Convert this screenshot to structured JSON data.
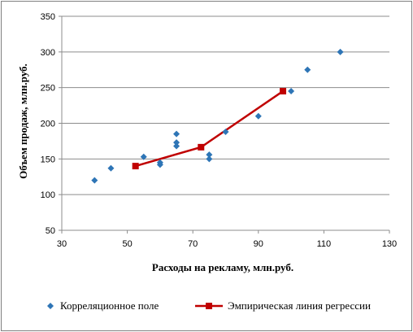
{
  "chart_data": {
    "type": "scatter",
    "title": "",
    "xlabel": "Расходы на рекламу, млн.руб.",
    "ylabel": "Объем продаж, млн.руб.",
    "xlim": [
      30,
      130
    ],
    "ylim": [
      50,
      350
    ],
    "x_ticks": [
      30,
      50,
      70,
      90,
      110,
      130
    ],
    "y_ticks": [
      50,
      100,
      150,
      200,
      250,
      300,
      350
    ],
    "grid": "horizontal",
    "legend_position": "bottom",
    "series": [
      {
        "name": "Корреляционное поле",
        "kind": "scatter",
        "marker": "diamond",
        "color": "#2e75b6",
        "points": [
          [
            40,
            120
          ],
          [
            45,
            137
          ],
          [
            55,
            153
          ],
          [
            60,
            142
          ],
          [
            60,
            145
          ],
          [
            65,
            168
          ],
          [
            65,
            173
          ],
          [
            65,
            185
          ],
          [
            75,
            150
          ],
          [
            75,
            156
          ],
          [
            80,
            188
          ],
          [
            90,
            210
          ],
          [
            100,
            245
          ],
          [
            105,
            275
          ],
          [
            115,
            300
          ]
        ]
      },
      {
        "name": "Эмпирическая линия регрессии",
        "kind": "line",
        "marker": "square",
        "color": "#c00000",
        "points": [
          [
            52.5,
            140
          ],
          [
            72.5,
            166.5
          ],
          [
            97.5,
            245
          ]
        ]
      }
    ]
  }
}
